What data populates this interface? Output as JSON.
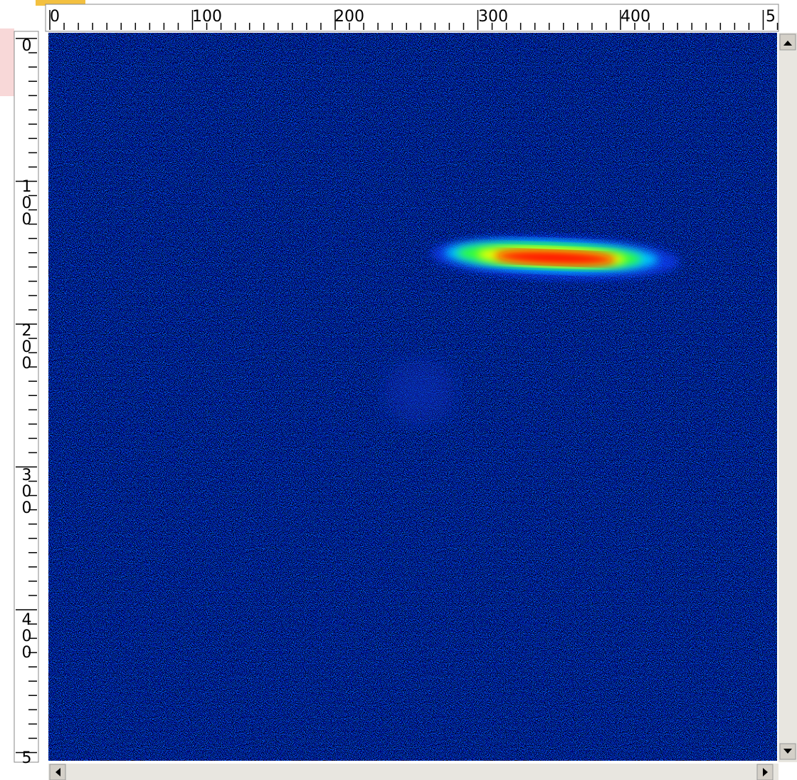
{
  "top_ruler": {
    "labels": [
      "0",
      "100",
      "200",
      "300",
      "400",
      "5"
    ]
  },
  "left_ruler": {
    "labels": [
      "0",
      "100",
      "200",
      "300",
      "400",
      "5"
    ]
  }
}
